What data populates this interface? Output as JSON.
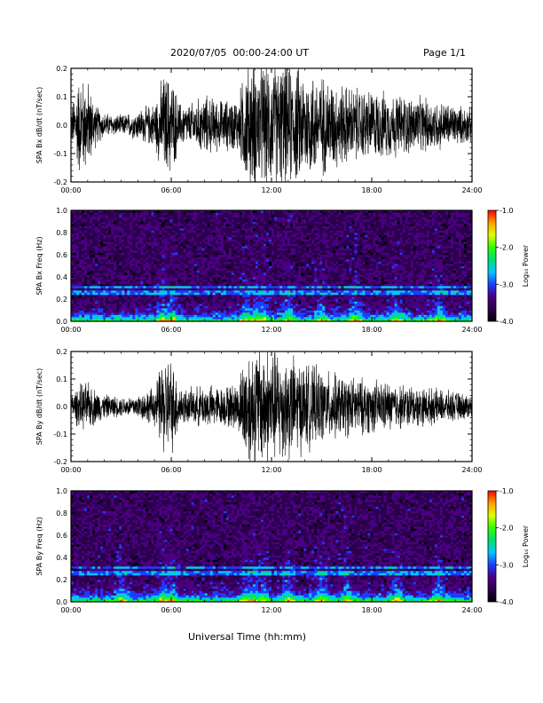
{
  "header": {
    "title": "2020/07/05  00:00-24:00 UT",
    "page": "Page 1/1"
  },
  "footer": {
    "xlabel": "Universal Time (hh:mm)"
  },
  "colors": {
    "colorbar": [
      "#000000",
      "#2a004a",
      "#4b0082",
      "#1e3cff",
      "#00c8ff",
      "#00e070",
      "#30ff00",
      "#e0ff00",
      "#ffa000",
      "#ff0000"
    ]
  },
  "chart_data": [
    {
      "type": "line",
      "name": "panel-1",
      "ylabel": "SPA Bx dB/dt (nT/sec)",
      "ylim": [
        -0.2,
        0.2
      ],
      "yticks": [
        "-0.2",
        "-0.1",
        "0.0",
        "0.1",
        "0.2"
      ],
      "xticks": [
        "00:00",
        "06:00",
        "12:00",
        "18:00",
        "24:00"
      ],
      "xlim_hours": [
        0,
        24
      ],
      "envelope": {
        "hours": [
          0,
          0.5,
          1,
          1.5,
          2,
          3,
          4,
          5,
          5.5,
          6,
          6.5,
          7,
          8,
          9,
          10,
          10.5,
          11,
          12,
          13,
          14,
          15,
          16,
          17,
          18,
          19,
          20,
          21,
          22,
          23,
          24
        ],
        "amplitude": [
          0.07,
          0.2,
          0.18,
          0.08,
          0.05,
          0.04,
          0.06,
          0.09,
          0.2,
          0.2,
          0.09,
          0.08,
          0.12,
          0.1,
          0.11,
          0.25,
          0.25,
          0.25,
          0.25,
          0.22,
          0.2,
          0.17,
          0.15,
          0.14,
          0.13,
          0.12,
          0.11,
          0.1,
          0.08,
          0.07
        ]
      }
    },
    {
      "type": "heatmap",
      "name": "panel-2",
      "ylabel": "SPA Bx Freq (Hz)",
      "ylim": [
        0.0,
        1.0
      ],
      "yticks": [
        "0.0",
        "0.2",
        "0.4",
        "0.6",
        "0.8",
        "1.0"
      ],
      "xticks": [
        "00:00",
        "06:00",
        "12:00",
        "18:00",
        "24:00"
      ],
      "xlim_hours": [
        0,
        24
      ],
      "colorbar": {
        "label": "Log₁₀ Power",
        "range": [
          -4.0,
          -1.0
        ],
        "ticks": [
          "-1.0",
          "-2.0",
          "-3.0",
          "-4.0"
        ]
      },
      "bright_lines_hz": [
        0.26,
        0.31
      ],
      "activity_hours": [
        5.5,
        6.0,
        10.5,
        11.0,
        11.5,
        13.0,
        15.0,
        17.0,
        19.5,
        22.0
      ]
    },
    {
      "type": "line",
      "name": "panel-3",
      "ylabel": "SPA By dB/dt (nT/sec)",
      "ylim": [
        -0.2,
        0.2
      ],
      "yticks": [
        "-0.2",
        "-0.1",
        "0.0",
        "0.1",
        "0.2"
      ],
      "xticks": [
        "00:00",
        "06:00",
        "12:00",
        "18:00",
        "24:00"
      ],
      "xlim_hours": [
        0,
        24
      ],
      "envelope": {
        "hours": [
          0,
          0.5,
          1,
          1.5,
          2,
          3,
          4,
          5,
          5.5,
          6,
          6.5,
          7,
          8,
          9,
          10,
          10.5,
          11,
          12,
          13,
          14,
          15,
          16,
          17,
          18,
          19,
          20,
          21,
          22,
          23,
          24
        ],
        "amplitude": [
          0.05,
          0.09,
          0.1,
          0.07,
          0.05,
          0.04,
          0.05,
          0.08,
          0.2,
          0.2,
          0.09,
          0.07,
          0.09,
          0.08,
          0.1,
          0.25,
          0.25,
          0.25,
          0.22,
          0.18,
          0.15,
          0.13,
          0.12,
          0.11,
          0.1,
          0.09,
          0.08,
          0.07,
          0.06,
          0.05
        ]
      }
    },
    {
      "type": "heatmap",
      "name": "panel-4",
      "ylabel": "SPA By Freq (Hz)",
      "ylim": [
        0.0,
        1.0
      ],
      "yticks": [
        "0.0",
        "0.2",
        "0.4",
        "0.6",
        "0.8",
        "1.0"
      ],
      "xticks": [
        "00:00",
        "06:00",
        "12:00",
        "18:00",
        "24:00"
      ],
      "xlim_hours": [
        0,
        24
      ],
      "colorbar": {
        "label": "Log₁₀ Power",
        "range": [
          -4.0,
          -1.0
        ],
        "ticks": [
          "-1.0",
          "-2.0",
          "-3.0",
          "-4.0"
        ]
      },
      "bright_lines_hz": [
        0.26,
        0.31
      ],
      "activity_hours": [
        3.0,
        5.5,
        6.0,
        10.5,
        11.0,
        11.5,
        13.0,
        15.0,
        16.5,
        19.5,
        22.0
      ]
    }
  ]
}
